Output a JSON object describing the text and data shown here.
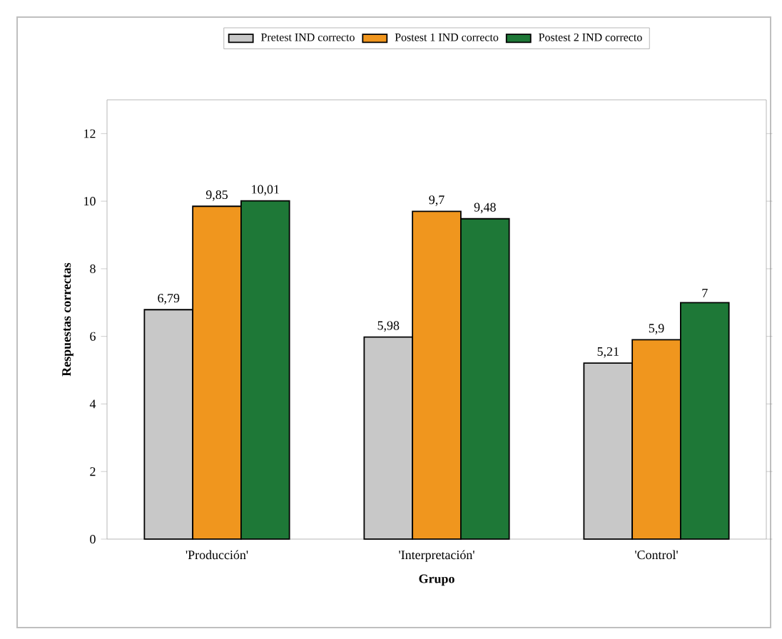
{
  "chart_data": {
    "type": "bar",
    "xlabel": "Grupo",
    "ylabel": "Respuestas correctas",
    "categories": [
      "'Producción'",
      "'Interpretación'",
      "'Control'"
    ],
    "series": [
      {
        "name": "Pretest IND correcto",
        "color": "#c8c8c8",
        "values": [
          6.79,
          5.98,
          5.21
        ],
        "value_labels": [
          "6,79",
          "5,98",
          "5,21"
        ]
      },
      {
        "name": "Postest 1 IND correcto",
        "color": "#f0961e",
        "values": [
          9.85,
          9.7,
          5.9
        ],
        "value_labels": [
          "9,85",
          "9,7",
          "5,9"
        ]
      },
      {
        "name": "Postest 2 IND correcto",
        "color": "#1e7837",
        "values": [
          10.01,
          9.48,
          7
        ],
        "value_labels": [
          "10,01",
          "9,48",
          "7"
        ]
      }
    ],
    "ylim": [
      0,
      13
    ],
    "yticks": [
      0,
      2,
      4,
      6,
      8,
      10,
      12
    ],
    "legend": "top"
  }
}
